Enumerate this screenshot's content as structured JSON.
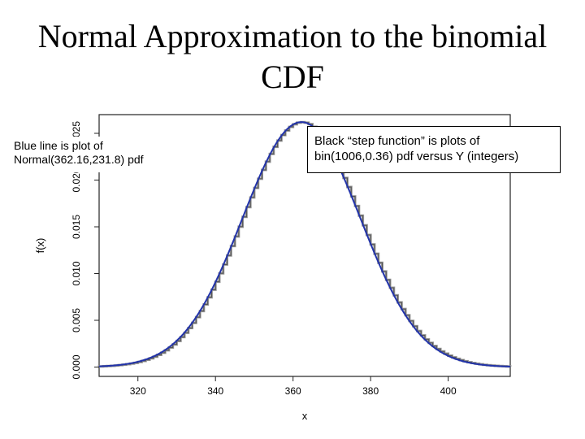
{
  "slide": {
    "title": "Normal Approximation to the binomial CDF"
  },
  "callouts": {
    "normal": "Blue line is plot of Normal(362.16,231.8) pdf",
    "binomial": "Black “step function” is plots of bin(1006,0.36) pdf versus Y (integers)"
  },
  "chart_data": {
    "type": "line",
    "xlabel": "x",
    "ylabel": "f(x)",
    "xlim": [
      310,
      416
    ],
    "ylim": [
      -0.001,
      0.027
    ],
    "x_ticks": [
      320,
      340,
      360,
      380,
      400
    ],
    "x_tick_labels": [
      "320",
      "340",
      "360",
      "380",
      "400"
    ],
    "y_ticks": [
      0.0,
      0.005,
      0.01,
      0.015,
      0.02,
      0.025
    ],
    "y_tick_labels": [
      "0.000",
      "0.005",
      "0.010",
      "0.015",
      "0.020",
      "0.025"
    ],
    "series": [
      {
        "kind": "normal-pdf",
        "mean": 362.16,
        "variance": 231.8,
        "color": "#2233aa"
      },
      {
        "kind": "binomial-step",
        "n": 1006,
        "p": 0.36,
        "color": "#555555"
      }
    ],
    "grid": false
  }
}
